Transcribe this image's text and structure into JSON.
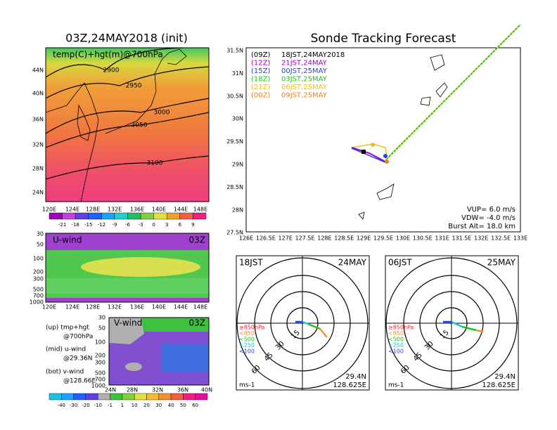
{
  "left": {
    "title": "03Z,24MAY2018 (init)",
    "map_label": "temp(C)+hgt(m)@700hPa",
    "lat_labels": [
      "44N",
      "40N",
      "36N",
      "32N",
      "28N",
      "24N"
    ],
    "lon_labels": [
      "120E",
      "124E",
      "128E",
      "132E",
      "136E",
      "140E",
      "144E",
      "148E"
    ],
    "contour_labels": [
      "2900",
      "2950",
      "3000",
      "3050",
      "3100"
    ],
    "colorbar_labels": [
      "-21",
      "-18",
      "-15",
      "-12",
      "-9",
      "-6",
      "-3",
      "0",
      "3",
      "6",
      "9"
    ]
  },
  "u_panel": {
    "label": "U-wind",
    "time": "03Z",
    "pressure_labels": [
      "30",
      "50",
      "100",
      "200",
      "300",
      "500",
      "700",
      "1000"
    ],
    "lon_labels": [
      "120E",
      "124E",
      "128E",
      "132E",
      "136E",
      "140E",
      "144E",
      "148E"
    ]
  },
  "v_panel": {
    "label": "V-wind",
    "time": "03Z",
    "pressure_labels": [
      "30",
      "50",
      "100",
      "200",
      "300",
      "500",
      "700",
      "1000"
    ],
    "lat_labels": [
      "24N",
      "28N",
      "32N",
      "36N",
      "40N"
    ]
  },
  "notes": [
    "(up) tmp+hgt",
    "@700hPa",
    "(mid) u-wind",
    "@29.36N",
    "(bot) v-wind",
    "@128.66E"
  ],
  "wind_colorbar_labels": [
    "-40",
    "-30",
    "-20",
    "-10",
    "-1",
    "1",
    "10",
    "20",
    "30",
    "40",
    "50",
    "60"
  ],
  "track": {
    "title": "Sonde Tracking Forecast",
    "lat_labels": [
      "31.5N",
      "31N",
      "30.5N",
      "30N",
      "29.5N",
      "29N",
      "28.5N",
      "28N",
      "27.5N"
    ],
    "lon_labels": [
      "126E",
      "126.5E",
      "127E",
      "127.5E",
      "128E",
      "128.5E",
      "129E",
      "129.5E",
      "130E",
      "130.5E",
      "131E",
      "131.5E",
      "132E",
      "132.5E",
      "133E"
    ],
    "legend": [
      {
        "time": "(09Z)",
        "label": "18JST,24MAY2018",
        "color": "#000000"
      },
      {
        "time": "(12Z)",
        "label": "21JST,24MAY",
        "color": "#a000c0"
      },
      {
        "time": "(15Z)",
        "label": "00JST,25MAY",
        "color": "#2040ff"
      },
      {
        "time": "(18Z)",
        "label": "03JST,25MAY",
        "color": "#20c020"
      },
      {
        "time": "(21Z)",
        "label": "06JST,25MAY",
        "color": "#e8c020"
      },
      {
        "time": "(00Z)",
        "label": "09JST,25MAY",
        "color": "#f08020"
      }
    ],
    "info": [
      "VUP= 6.0 m/s",
      "VDW= -4.0 m/s",
      "Burst Alt= 18.0 km"
    ]
  },
  "hodographs": [
    {
      "time": "18JST",
      "date": "24MAY",
      "ring_labels": [
        "15",
        "30",
        "45",
        "60"
      ],
      "levels": [
        {
          "label": "≥850hPa",
          "color": "#ff2020"
        },
        {
          "label": "<850",
          "color": "#ff9020"
        },
        {
          "label": "<500",
          "color": "#20c020"
        },
        {
          "label": "<250",
          "color": "#20c0e0"
        },
        {
          "label": "<100",
          "color": "#2040ff"
        }
      ],
      "unit": "ms-1",
      "lat": "29.4N",
      "lon": "128.625E"
    },
    {
      "time": "06JST",
      "date": "25MAY",
      "ring_labels": [
        "15",
        "30",
        "45",
        "60"
      ],
      "levels": [
        {
          "label": "≥850hPa",
          "color": "#ff2020"
        },
        {
          "label": "<850",
          "color": "#ff9020"
        },
        {
          "label": "<500",
          "color": "#20c020"
        },
        {
          "label": "<250",
          "color": "#20c0e0"
        },
        {
          "label": "<100",
          "color": "#2040ff"
        }
      ],
      "unit": "ms-1",
      "lat": "29.4N",
      "lon": "128.625E"
    }
  ]
}
